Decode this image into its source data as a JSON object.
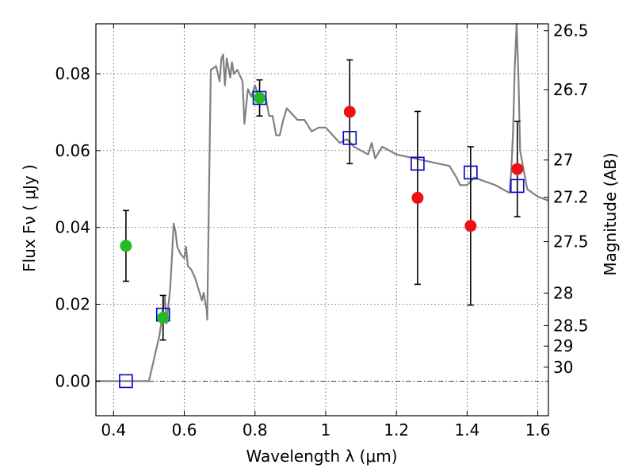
{
  "chart_data": {
    "type": "scatter",
    "xlabel": "Wavelength  λ (μm)",
    "ylabel": "Flux  Fν  ( μJy )",
    "ylabel2": "Magnitude (AB)",
    "xlim": [
      0.35,
      1.63
    ],
    "ylim": [
      -0.009,
      0.093
    ],
    "grid": true,
    "x_ticks": [
      {
        "value": 0.4,
        "label": "0.4"
      },
      {
        "value": 0.6,
        "label": "0.6"
      },
      {
        "value": 0.8,
        "label": "0.8"
      },
      {
        "value": 1.0,
        "label": "1"
      },
      {
        "value": 1.2,
        "label": "1.2"
      },
      {
        "value": 1.4,
        "label": "1.4"
      },
      {
        "value": 1.6,
        "label": "1.6"
      }
    ],
    "y_ticks": [
      {
        "value": 0.0,
        "label": "0.00"
      },
      {
        "value": 0.02,
        "label": "0.02"
      },
      {
        "value": 0.04,
        "label": "0.04"
      },
      {
        "value": 0.06,
        "label": "0.06"
      },
      {
        "value": 0.08,
        "label": "0.08"
      }
    ],
    "mag_ticks": [
      {
        "value": 26.5,
        "label": "26.5"
      },
      {
        "value": 26.7,
        "label": "26.7"
      },
      {
        "value": 27.0,
        "label": "27"
      },
      {
        "value": 27.2,
        "label": "27.2"
      },
      {
        "value": 27.5,
        "label": "27.5"
      },
      {
        "value": 28.0,
        "label": "28"
      },
      {
        "value": 28.5,
        "label": "28.5"
      },
      {
        "value": 29.0,
        "label": "29"
      },
      {
        "value": 30.0,
        "label": "30"
      }
    ],
    "series": [
      {
        "kind": "sed_model_line",
        "color": "#808080",
        "x": [
          0.35,
          0.5,
          0.51,
          0.53,
          0.545,
          0.55,
          0.56,
          0.565,
          0.57,
          0.575,
          0.58,
          0.59,
          0.6,
          0.605,
          0.61,
          0.62,
          0.63,
          0.64,
          0.65,
          0.655,
          0.66,
          0.663,
          0.665,
          0.67,
          0.675,
          0.69,
          0.7,
          0.705,
          0.71,
          0.715,
          0.72,
          0.73,
          0.735,
          0.74,
          0.75,
          0.76,
          0.765,
          0.77,
          0.78,
          0.79,
          0.8,
          0.81,
          0.82,
          0.83,
          0.84,
          0.85,
          0.86,
          0.87,
          0.88,
          0.89,
          0.9,
          0.92,
          0.94,
          0.96,
          0.98,
          1.0,
          1.02,
          1.04,
          1.06,
          1.08,
          1.1,
          1.12,
          1.13,
          1.14,
          1.16,
          1.2,
          1.25,
          1.3,
          1.35,
          1.37,
          1.38,
          1.4,
          1.42,
          1.45,
          1.48,
          1.5,
          1.52,
          1.525,
          1.53,
          1.535,
          1.54,
          1.545,
          1.55,
          1.57,
          1.6,
          1.63
        ],
        "y": [
          0.0,
          0.0,
          0.004,
          0.012,
          0.022,
          0.015,
          0.024,
          0.032,
          0.041,
          0.039,
          0.035,
          0.033,
          0.032,
          0.035,
          0.03,
          0.029,
          0.027,
          0.024,
          0.021,
          0.023,
          0.02,
          0.019,
          0.016,
          0.05,
          0.081,
          0.082,
          0.078,
          0.084,
          0.085,
          0.077,
          0.084,
          0.079,
          0.083,
          0.08,
          0.081,
          0.079,
          0.078,
          0.067,
          0.076,
          0.074,
          0.077,
          0.074,
          0.073,
          0.074,
          0.069,
          0.069,
          0.064,
          0.064,
          0.068,
          0.071,
          0.07,
          0.068,
          0.068,
          0.065,
          0.066,
          0.066,
          0.064,
          0.062,
          0.063,
          0.061,
          0.06,
          0.059,
          0.062,
          0.058,
          0.061,
          0.059,
          0.058,
          0.057,
          0.056,
          0.053,
          0.051,
          0.051,
          0.053,
          0.052,
          0.051,
          0.05,
          0.049,
          0.055,
          0.065,
          0.082,
          0.093,
          0.08,
          0.06,
          0.05,
          0.048,
          0.047
        ]
      },
      {
        "kind": "model_photometry_squares",
        "color": "#0000cc",
        "x": [
          0.435,
          0.54,
          0.813,
          1.068,
          1.26,
          1.41,
          1.542
        ],
        "y": [
          0.0,
          0.0173,
          0.0737,
          0.0633,
          0.0566,
          0.0543,
          0.0508
        ]
      },
      {
        "kind": "observed_points_green",
        "color": "#22bb22",
        "x": [
          0.435,
          0.54,
          0.813
        ],
        "y": [
          0.0352,
          0.0165,
          0.0737
        ],
        "err": [
          0.0092,
          0.0058,
          0.0047
        ]
      },
      {
        "kind": "observed_points_red",
        "color": "#ee1111",
        "x": [
          1.068,
          1.26,
          1.41,
          1.542
        ],
        "y": [
          0.0701,
          0.0477,
          0.0404,
          0.0552
        ],
        "err": [
          0.0135,
          0.0225,
          0.0206,
          0.0124
        ]
      }
    ]
  }
}
